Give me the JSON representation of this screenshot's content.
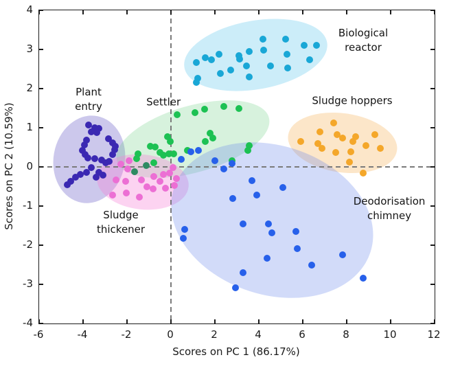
{
  "chart_data": {
    "type": "scatter",
    "title": "",
    "xlabel": "Scores on PC 1 (86.17%)",
    "ylabel": "Scores on PC 2 (10.59%)",
    "xlim": [
      -6,
      12
    ],
    "ylim": [
      -4,
      4
    ],
    "x_ticks": [
      -6,
      -4,
      -2,
      0,
      2,
      4,
      6,
      8,
      10,
      12
    ],
    "y_ticks": [
      -4,
      -3,
      -2,
      -1,
      0,
      1,
      2,
      3,
      4
    ],
    "grid": false,
    "legend": "none",
    "reference_lines": {
      "vertical_x": 0,
      "horizontal_y": 0,
      "style": "dashed",
      "color": "#7a7a7a"
    },
    "clusters": [
      {
        "id": "plant-entry",
        "name": "Plant entry",
        "label_lines": [
          "Plant",
          "entry"
        ],
        "label_pos": {
          "x": -3.75,
          "y": 1.72
        },
        "dot_color": "#3a28b2",
        "ellipse": {
          "cx": -3.72,
          "cy": 0.2,
          "rx": 1.62,
          "ry": 1.12,
          "rot": 10,
          "fill": "rgba(121,110,205,0.38)"
        },
        "points": [
          [
            -3.75,
            1.07
          ],
          [
            -3.47,
            1.0
          ],
          [
            -3.28,
            0.98
          ],
          [
            -3.63,
            0.9
          ],
          [
            -3.38,
            0.88
          ],
          [
            -2.84,
            0.72
          ],
          [
            -2.66,
            0.61
          ],
          [
            -2.53,
            0.53
          ],
          [
            -3.84,
            0.68
          ],
          [
            -3.94,
            0.56
          ],
          [
            -4.03,
            0.42
          ],
          [
            -3.91,
            0.32
          ],
          [
            -3.78,
            0.23
          ],
          [
            -2.56,
            0.44
          ],
          [
            -2.66,
            0.32
          ],
          [
            -3.47,
            0.21
          ],
          [
            -3.16,
            0.18
          ],
          [
            -2.97,
            0.11
          ],
          [
            -2.81,
            0.14
          ],
          [
            -3.63,
            -0.02
          ],
          [
            -3.84,
            -0.14
          ],
          [
            -4.13,
            -0.19
          ],
          [
            -4.34,
            -0.26
          ],
          [
            -4.56,
            -0.37
          ],
          [
            -4.72,
            -0.46
          ],
          [
            -3.28,
            -0.14
          ],
          [
            -3.09,
            -0.21
          ],
          [
            -3.41,
            -0.26
          ]
        ]
      },
      {
        "id": "settler",
        "name": "Settler",
        "label_lines": [
          "Settler"
        ],
        "label_pos": {
          "x": -0.34,
          "y": 1.65
        },
        "dot_color": "#1dc153",
        "ellipse": {
          "cx": 1.0,
          "cy": 0.72,
          "rx": 3.6,
          "ry": 0.85,
          "rot": -16,
          "fill": "rgba(96,205,120,0.25)"
        },
        "points": [
          [
            0.28,
            1.33
          ],
          [
            1.1,
            1.39
          ],
          [
            1.53,
            1.47
          ],
          [
            2.4,
            1.55
          ],
          [
            3.1,
            1.5
          ],
          [
            1.78,
            0.86
          ],
          [
            1.9,
            0.74
          ],
          [
            1.57,
            0.65
          ],
          [
            3.55,
            0.55
          ],
          [
            3.5,
            0.42
          ],
          [
            2.78,
            0.16
          ],
          [
            -0.16,
            0.77
          ],
          [
            -0.04,
            0.65
          ],
          [
            -0.1,
            0.33
          ],
          [
            -0.35,
            0.3
          ],
          [
            -0.5,
            0.37
          ],
          [
            -0.72,
            0.51
          ],
          [
            -0.94,
            0.53
          ],
          [
            -1.5,
            0.33
          ],
          [
            -1.56,
            0.21
          ],
          [
            -0.78,
            0.1
          ],
          [
            0.74,
            0.42
          ],
          [
            0.12,
            0.33
          ],
          [
            -1.13,
            0.04,
            "#2e8b62"
          ],
          [
            -1.66,
            -0.12,
            "#2e8b62"
          ]
        ]
      },
      {
        "id": "sludge-thickener",
        "name": "Sludge thickener",
        "label_lines": [
          "Sludge",
          "thickener"
        ],
        "label_pos": {
          "x": -2.28,
          "y": -1.42
        },
        "dot_color": "#ec6fd4",
        "ellipse": {
          "cx": -1.26,
          "cy": -0.38,
          "rx": 2.1,
          "ry": 0.7,
          "rot": 6,
          "fill": "rgba(247,130,215,0.35)"
        },
        "points": [
          [
            -2.49,
            -0.34
          ],
          [
            -2.07,
            -0.37
          ],
          [
            -1.34,
            -0.34
          ],
          [
            -0.77,
            -0.25
          ],
          [
            -0.51,
            -0.37
          ],
          [
            -1.08,
            -0.51
          ],
          [
            -0.82,
            -0.57
          ],
          [
            -2.02,
            -0.66
          ],
          [
            -2.65,
            -0.72
          ],
          [
            -1.45,
            -0.78
          ],
          [
            -0.35,
            -0.19
          ],
          [
            -0.25,
            -0.54
          ],
          [
            -1.9,
            0.16
          ],
          [
            -2.28,
            0.07
          ],
          [
            -1.97,
            -0.05
          ],
          [
            0.1,
            -0.02
          ],
          [
            -0.06,
            -0.15
          ],
          [
            0.25,
            -0.3
          ],
          [
            0.15,
            -0.47
          ]
        ]
      },
      {
        "id": "biological-reactor",
        "name": "Biological reactor",
        "label_lines": [
          "Biological",
          "reactor"
        ],
        "label_pos": {
          "x": 8.75,
          "y": 3.22
        },
        "dot_color": "#19a7d6",
        "ellipse": {
          "cx": 3.85,
          "cy": 2.85,
          "rx": 3.3,
          "ry": 0.88,
          "rot": -10,
          "fill": "rgba(85,195,235,0.3)"
        },
        "points": [
          [
            4.18,
            3.26
          ],
          [
            5.22,
            3.26
          ],
          [
            6.05,
            3.11
          ],
          [
            6.63,
            3.11
          ],
          [
            4.23,
            2.99
          ],
          [
            3.55,
            2.94
          ],
          [
            2.2,
            2.88
          ],
          [
            3.08,
            2.85
          ],
          [
            5.27,
            2.88
          ],
          [
            1.57,
            2.79
          ],
          [
            1.83,
            2.73
          ],
          [
            1.16,
            2.67
          ],
          [
            3.13,
            2.76
          ],
          [
            3.45,
            2.58
          ],
          [
            4.54,
            2.58
          ],
          [
            6.31,
            2.73
          ],
          [
            5.32,
            2.53
          ],
          [
            2.72,
            2.47
          ],
          [
            2.25,
            2.38
          ],
          [
            3.55,
            2.29
          ],
          [
            1.21,
            2.26
          ],
          [
            1.16,
            2.15
          ]
        ]
      },
      {
        "id": "sludge-hoppers",
        "name": "Sludge hoppers",
        "label_lines": [
          "Sludge hoppers"
        ],
        "label_pos": {
          "x": 8.25,
          "y": 1.68
        },
        "dot_color": "#f4a72a",
        "ellipse": {
          "cx": 7.8,
          "cy": 0.62,
          "rx": 2.5,
          "ry": 0.75,
          "rot": 8,
          "fill": "rgba(245,166,60,0.28)"
        },
        "points": [
          [
            7.4,
            1.12
          ],
          [
            6.78,
            0.89
          ],
          [
            7.56,
            0.83
          ],
          [
            9.28,
            0.83
          ],
          [
            7.82,
            0.74
          ],
          [
            8.4,
            0.77
          ],
          [
            5.9,
            0.65
          ],
          [
            6.68,
            0.6
          ],
          [
            8.29,
            0.65
          ],
          [
            6.88,
            0.48
          ],
          [
            8.87,
            0.54
          ],
          [
            9.54,
            0.48
          ],
          [
            7.51,
            0.36
          ],
          [
            8.19,
            0.39
          ],
          [
            8.13,
            0.13
          ],
          [
            8.76,
            -0.16
          ]
        ]
      },
      {
        "id": "deodorisation-chimney",
        "name": "Deodorisation chimney",
        "label_lines": [
          "Deodorisation",
          "chimney"
        ],
        "label_pos": {
          "x": 9.94,
          "y": -1.07
        },
        "dot_color": "#2760ea",
        "ellipse": {
          "cx": 4.6,
          "cy": -1.35,
          "rx": 4.7,
          "ry": 1.9,
          "rot": 18,
          "fill": "rgba(105,135,235,0.3)"
        },
        "points": [
          [
            0.47,
            0.19
          ],
          [
            0.9,
            0.39
          ],
          [
            1.25,
            0.42
          ],
          [
            1.99,
            0.16
          ],
          [
            2.41,
            -0.05
          ],
          [
            2.77,
            0.08
          ],
          [
            3.7,
            -0.35
          ],
          [
            5.1,
            -0.53
          ],
          [
            3.92,
            -0.72
          ],
          [
            2.82,
            -0.81
          ],
          [
            0.63,
            -1.6
          ],
          [
            0.56,
            -1.82
          ],
          [
            3.29,
            -1.45
          ],
          [
            4.44,
            -1.45
          ],
          [
            4.59,
            -1.68
          ],
          [
            5.69,
            -1.65
          ],
          [
            5.74,
            -2.09
          ],
          [
            4.39,
            -2.33
          ],
          [
            6.42,
            -2.5
          ],
          [
            7.82,
            -2.24
          ],
          [
            3.29,
            -2.71
          ],
          [
            2.93,
            -3.09
          ],
          [
            8.76,
            -2.85
          ]
        ]
      }
    ]
  }
}
